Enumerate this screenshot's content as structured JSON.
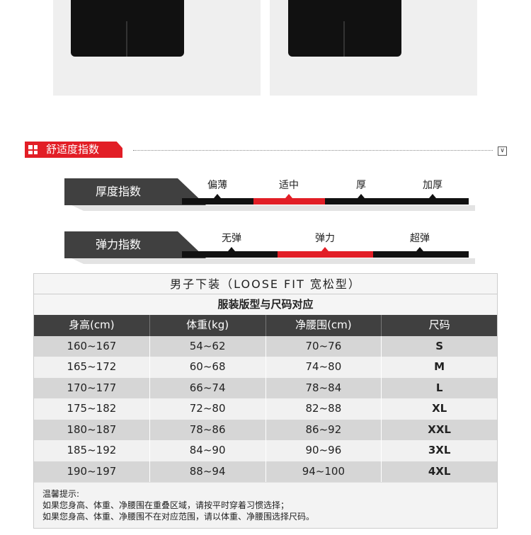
{
  "section": {
    "title": "舒适度指数",
    "icon": "grid-icon",
    "collapse_icon": "chevron-down-icon"
  },
  "thickness": {
    "label": "厚度指数",
    "levels": [
      "偏薄",
      "适中",
      "厚",
      "加厚"
    ],
    "selected": "适中"
  },
  "elasticity": {
    "label": "弹力指数",
    "levels": [
      "无弹",
      "弹力",
      "超弹"
    ],
    "selected": "弹力"
  },
  "table": {
    "title": "男子下装（LOOSE FIT 宽松型）",
    "subtitle": "服装版型与尺码对应",
    "headers": [
      "身高(cm)",
      "体重(kg)",
      "净腰围(cm)",
      "尺码"
    ],
    "rows": [
      [
        "160~167",
        "54~62",
        "70~76",
        "S"
      ],
      [
        "165~172",
        "60~68",
        "74~80",
        "M"
      ],
      [
        "170~177",
        "66~74",
        "78~84",
        "L"
      ],
      [
        "175~182",
        "72~80",
        "82~88",
        "XL"
      ],
      [
        "180~187",
        "78~86",
        "86~92",
        "XXL"
      ],
      [
        "185~192",
        "84~90",
        "90~96",
        "3XL"
      ],
      [
        "190~197",
        "88~94",
        "94~100",
        "4XL"
      ]
    ]
  },
  "notes": [
    "温馨提示:",
    "如果您身高、体重、净腰围在重叠区域，请按平时穿着习惯选择；",
    "如果您身高、体重、净腰围不在对应范围，请以体重、净腰围选择尺码。"
  ],
  "colors": {
    "accent": "#e21e26",
    "dark": "#404040"
  }
}
